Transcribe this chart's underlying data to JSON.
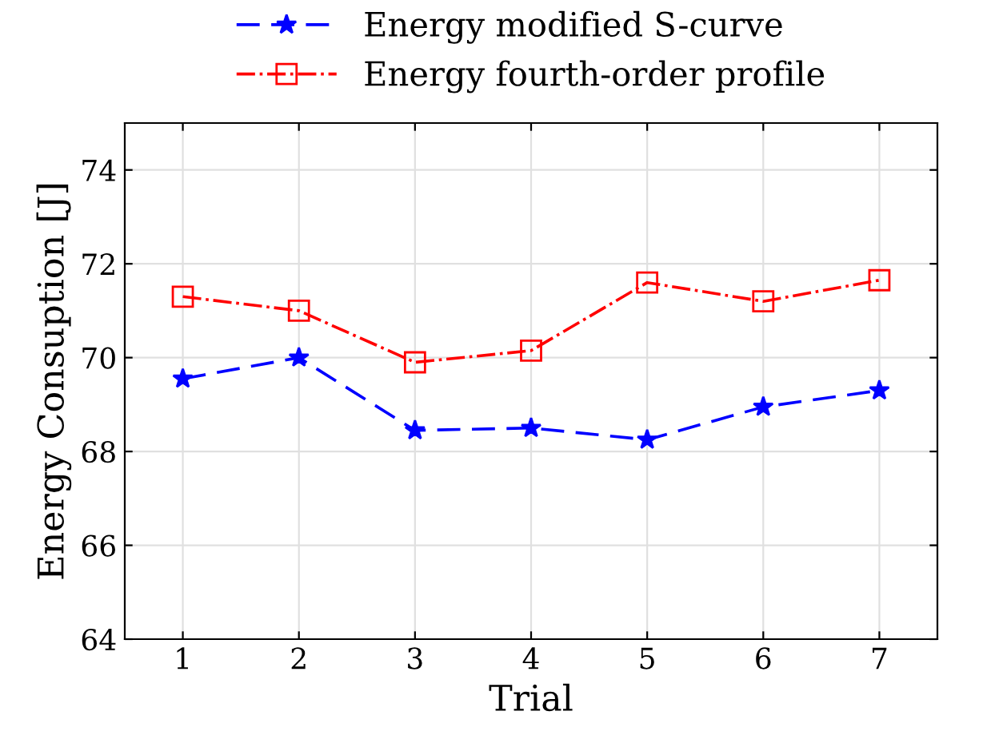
{
  "chart_data": {
    "type": "line",
    "xlabel": "Trial",
    "ylabel": "Energy Consuption [J]",
    "x": [
      1,
      2,
      3,
      4,
      5,
      6,
      7
    ],
    "series": [
      {
        "name": "Energy modified S-curve",
        "color": "#0000ff",
        "marker": "star",
        "line_style": "dashed",
        "values": [
          69.55,
          70.0,
          68.45,
          68.5,
          68.25,
          68.95,
          69.3
        ]
      },
      {
        "name": "Energy fourth-order profile",
        "color": "#ff0000",
        "marker": "square",
        "line_style": "dashdot",
        "values": [
          71.3,
          71.0,
          69.9,
          70.15,
          71.6,
          71.2,
          71.65
        ]
      }
    ],
    "xlim": [
      0.5,
      7.5
    ],
    "xticks": [
      1,
      2,
      3,
      4,
      5,
      6,
      7
    ],
    "ylim": [
      64,
      75
    ],
    "yticks": [
      64,
      66,
      68,
      70,
      72,
      74
    ],
    "grid": true,
    "legend": "top"
  }
}
